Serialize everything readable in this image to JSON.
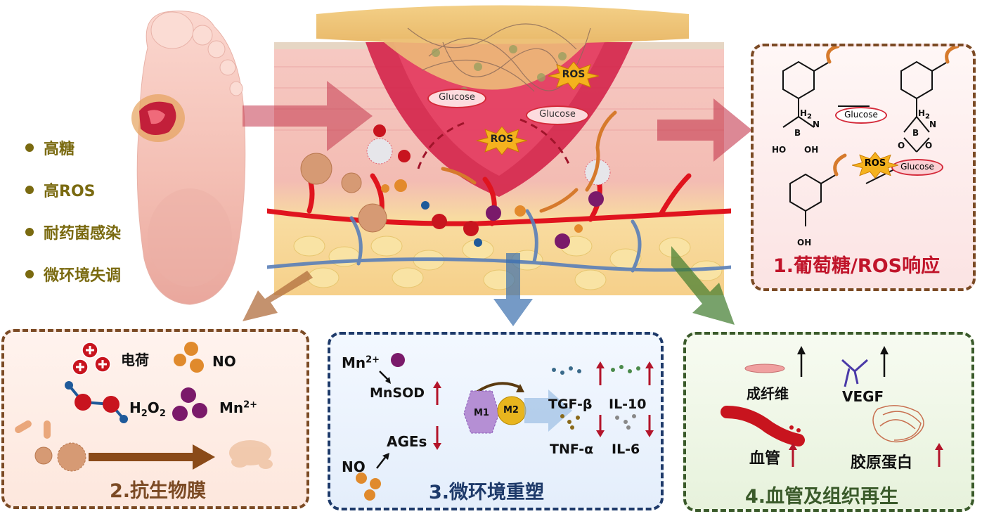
{
  "bullets": [
    "高糖",
    "高ROS",
    "耐药菌感染",
    "微环境失调"
  ],
  "scene": {
    "glucose_label": "Glucose",
    "ros_label": "ROS"
  },
  "panel1": {
    "title": "1.葡萄糖/ROS响应",
    "glucose": "Glucose",
    "ros": "ROS",
    "h2": "H",
    "h2_sub": "2",
    "n": "N",
    "b": "B",
    "oh": "OH",
    "ho": "HO",
    "o": "O"
  },
  "panel2": {
    "title": "2.抗生物膜",
    "charge": "电荷",
    "no": "NO",
    "h2o2_h": "H",
    "h2o2_sub1": "2",
    "h2o2_o": "O",
    "h2o2_sub2": "2",
    "mn_base": "Mn",
    "mn_sup": "2+"
  },
  "panel3": {
    "title": "3.微环境重塑",
    "mn_base": "Mn",
    "mn_sup": "2+",
    "mnsod": "MnSOD",
    "ages": "AGEs",
    "no": "NO",
    "m1": "M1",
    "m2": "M2",
    "tgf": "TGF-β",
    "il10": "IL-10",
    "tnf": "TNF-α",
    "il6": "IL-6"
  },
  "panel4": {
    "title": "4.血管及组织再生",
    "fibro": "成纤维",
    "vegf": "VEGF",
    "vessel": "血管",
    "collagen": "胶原蛋白"
  },
  "colors": {
    "bullet": "#7a6a10",
    "panel_brown": "#7b4a24",
    "panel_blue": "#1e3a6a",
    "panel_green": "#3a5a2a",
    "title_red": "#c0142a",
    "title_brown": "#7b4a24",
    "title_blue": "#1e3a6a",
    "title_green": "#3a5a2a",
    "up_down_arrow": "#b3142a"
  }
}
